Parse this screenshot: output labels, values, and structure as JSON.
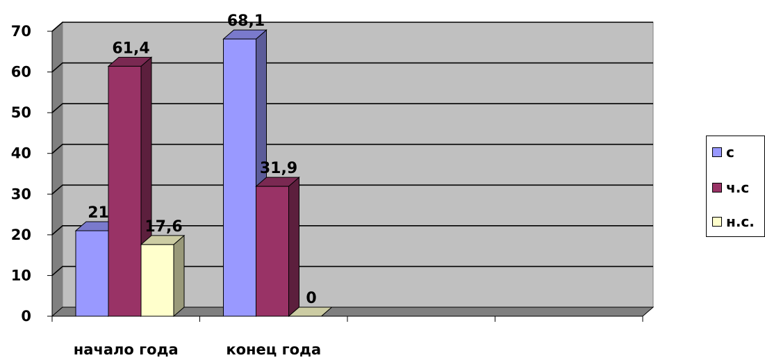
{
  "chart_data": {
    "type": "bar",
    "style": "3d-clustered-column",
    "categories": [
      "начало года",
      "конец года",
      "",
      ""
    ],
    "series": [
      {
        "name": "с",
        "values": [
          21,
          68.1,
          null,
          null
        ],
        "labels": [
          "21",
          "68,1",
          "",
          ""
        ],
        "color": "#9999FF"
      },
      {
        "name": "ч.с",
        "values": [
          61.4,
          31.9,
          null,
          null
        ],
        "labels": [
          "61,4",
          "31,9",
          "",
          ""
        ],
        "color": "#993366"
      },
      {
        "name": "н.с.",
        "values": [
          17.6,
          0,
          null,
          null
        ],
        "labels": [
          "17,6",
          "0",
          "",
          ""
        ],
        "color": "#FFFFCC"
      }
    ],
    "ylim": [
      0,
      70
    ],
    "yticks": [
      0,
      10,
      20,
      30,
      40,
      50,
      60,
      70
    ],
    "title": "",
    "xlabel": "",
    "ylabel": "",
    "grid": true,
    "legend_position": "right",
    "wall_color": "#C0C0C0",
    "floor_color": "#808080"
  }
}
